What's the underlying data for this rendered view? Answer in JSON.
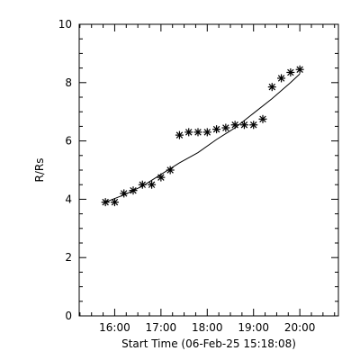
{
  "chart_data": {
    "type": "scatter",
    "xlabel": "Start Time (06-Feb-25 15:18:08)",
    "ylabel": "R/Rs",
    "x_unit": "hours",
    "xlim": [
      15.2333,
      20.8333
    ],
    "ylim": [
      0,
      10
    ],
    "xticks": [
      16,
      17,
      18,
      19,
      20
    ],
    "xtick_labels": [
      "16:00",
      "17:00",
      "18:00",
      "19:00",
      "20:00"
    ],
    "yticks": [
      0,
      2,
      4,
      6,
      8,
      10
    ],
    "ytick_labels": [
      "0",
      "2",
      "4",
      "6",
      "8",
      "10"
    ],
    "grid": false,
    "marker": "asterisk",
    "series": [
      {
        "x": [
          "15:48",
          "15:60",
          "16:12",
          "16:24",
          "16:36",
          "16:48",
          "17:00",
          "17:12",
          "17:24",
          "17:36",
          "17:48",
          "18:00",
          "18:12",
          "18:24",
          "18:36",
          "18:48",
          "19:00",
          "19:12",
          "19:24",
          "19:36",
          "19:48",
          "20:00"
        ],
        "x_hours": [
          15.8,
          16.0,
          16.2,
          16.4,
          16.6,
          16.8,
          17.0,
          17.2,
          17.4,
          17.6,
          17.8,
          18.0,
          18.2,
          18.4,
          18.6,
          18.8,
          19.0,
          19.2,
          19.4,
          19.6,
          19.8,
          20.0
        ],
        "y": [
          3.9,
          3.9,
          4.2,
          4.3,
          4.5,
          4.5,
          4.75,
          5.0,
          6.2,
          6.3,
          6.3,
          6.3,
          6.4,
          6.45,
          6.55,
          6.55,
          6.55,
          6.75,
          7.85,
          8.15,
          8.35,
          8.45
        ]
      }
    ],
    "fit_line": {
      "x_hours": [
        15.8,
        16.2,
        16.6,
        17.0,
        17.4,
        17.8,
        18.2,
        18.6,
        19.0,
        19.4,
        19.8,
        20.0
      ],
      "y": [
        3.9,
        4.15,
        4.45,
        4.85,
        5.25,
        5.6,
        6.05,
        6.45,
        6.95,
        7.45,
        8.0,
        8.3
      ]
    }
  }
}
